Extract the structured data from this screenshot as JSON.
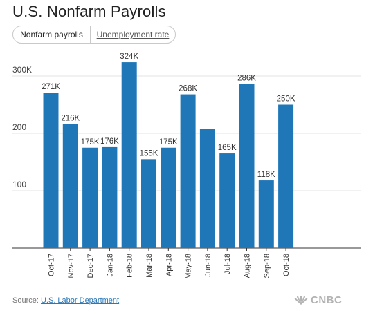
{
  "header": {
    "title": "U.S. Nonfarm Payrolls"
  },
  "toggle": {
    "options": [
      "Nonfarm payrolls",
      "Unemployment rate"
    ],
    "selected": 0
  },
  "chart_data": {
    "type": "bar",
    "title": "U.S. Nonfarm Payrolls",
    "categories": [
      "Oct-17",
      "Nov-17",
      "Dec-17",
      "Jan-18",
      "Feb-18",
      "Mar-18",
      "Apr-18",
      "May-18",
      "Jun-18",
      "Jul-18",
      "Aug-18",
      "Sep-18",
      "Oct-18"
    ],
    "values": [
      271,
      216,
      175,
      176,
      324,
      155,
      175,
      268,
      208,
      165,
      286,
      118,
      250
    ],
    "data_labels": [
      "271K",
      "216K",
      "175K",
      "176K",
      "324K",
      "155K",
      "175K",
      "268K",
      "",
      "165K",
      "286K",
      "118K",
      "250K"
    ],
    "yticks": [
      100,
      200,
      300
    ],
    "ytick_labels": [
      "100",
      "200",
      "300K"
    ],
    "ylim": [
      0,
      340
    ],
    "xlabel": "",
    "ylabel": "",
    "bar_color": "#1f77b8",
    "grid": true,
    "legend": "none"
  },
  "footer": {
    "source_label": "Source:",
    "source_link": "U.S. Labor Department"
  },
  "brand": {
    "logo_text": "CNBC",
    "logo_icon": "peacock-icon"
  }
}
